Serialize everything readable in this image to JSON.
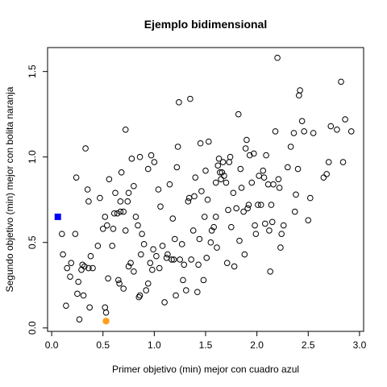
{
  "chart_data": {
    "type": "scatter",
    "title": "Ejemplo bidimensional",
    "xlabel": "Primer objetivo (min) mejor con cuadro azul",
    "ylabel": "Segundo objetivo (min) mejor con bolita naranja",
    "xlim": [
      -0.04,
      3.04
    ],
    "ylim": [
      -0.02,
      1.64
    ],
    "xticks": [
      0.0,
      0.5,
      1.0,
      1.5,
      2.0,
      2.5,
      3.0
    ],
    "xtick_labels": [
      "0.0",
      "0.5",
      "1.0",
      "1.5",
      "2.0",
      "2.5",
      "3.0"
    ],
    "yticks": [
      0.0,
      0.5,
      1.0,
      1.5
    ],
    "ytick_labels": [
      "0.0",
      "0.5",
      "1.0",
      "1.5"
    ],
    "grid": false,
    "highlight_square": {
      "x": 0.06,
      "y": 0.65,
      "color": "#0000ff"
    },
    "highlight_circle": {
      "x": 0.53,
      "y": 0.04,
      "color": "#ff9f1c"
    },
    "series": [
      {
        "marker": "open-circle",
        "color": "#000000",
        "points": [
          [
            0.1,
            0.55
          ],
          [
            0.11,
            0.43
          ],
          [
            0.15,
            0.35
          ],
          [
            0.14,
            0.13
          ],
          [
            0.18,
            0.3
          ],
          [
            0.19,
            0.38
          ],
          [
            0.23,
            0.55
          ],
          [
            0.24,
            0.88
          ],
          [
            0.26,
            0.27
          ],
          [
            0.25,
            0.2
          ],
          [
            0.27,
            0.05
          ],
          [
            0.29,
            0.34
          ],
          [
            0.3,
            0.37
          ],
          [
            0.32,
            0.36
          ],
          [
            0.31,
            0.19
          ],
          [
            0.33,
            1.05
          ],
          [
            0.35,
            0.81
          ],
          [
            0.36,
            0.74
          ],
          [
            0.36,
            0.35
          ],
          [
            0.37,
            0.12
          ],
          [
            0.38,
            0.42
          ],
          [
            0.4,
            0.35
          ],
          [
            0.45,
            0.48
          ],
          [
            0.47,
            0.76
          ],
          [
            0.5,
            0.58
          ],
          [
            0.52,
            0.65
          ],
          [
            0.52,
            0.12
          ],
          [
            0.53,
            0.09
          ],
          [
            0.54,
            0.6
          ],
          [
            0.56,
            0.87
          ],
          [
            0.55,
            0.29
          ],
          [
            0.59,
            0.48
          ],
          [
            0.6,
            0.58
          ],
          [
            0.61,
            0.67
          ],
          [
            0.62,
            0.79
          ],
          [
            0.64,
            0.67
          ],
          [
            0.65,
            0.28
          ],
          [
            0.66,
            0.26
          ],
          [
            0.67,
            0.68
          ],
          [
            0.67,
            0.74
          ],
          [
            0.68,
            0.91
          ],
          [
            0.7,
            0.68
          ],
          [
            0.7,
            0.23
          ],
          [
            0.72,
            0.57
          ],
          [
            0.72,
            1.16
          ],
          [
            0.74,
            0.74
          ],
          [
            0.75,
            0.79
          ],
          [
            0.75,
            0.36
          ],
          [
            0.77,
            0.38
          ],
          [
            0.78,
            0.99
          ],
          [
            0.8,
            0.33
          ],
          [
            0.8,
            0.83
          ],
          [
            0.82,
            0.65
          ],
          [
            0.84,
            0.6
          ],
          [
            0.85,
            0.18
          ],
          [
            0.86,
            0.19
          ],
          [
            0.87,
            0.43
          ],
          [
            0.88,
            0.55
          ],
          [
            0.86,
            1.0
          ],
          [
            0.9,
            0.49
          ],
          [
            0.92,
            0.22
          ],
          [
            0.94,
            0.26
          ],
          [
            0.94,
            0.93
          ],
          [
            0.96,
            0.38
          ],
          [
            0.97,
            1.01
          ],
          [
            0.98,
            0.34
          ],
          [
            0.99,
            0.46
          ],
          [
            1.0,
            0.97
          ],
          [
            1.02,
            0.42
          ],
          [
            1.04,
            0.81
          ],
          [
            1.05,
            0.35
          ],
          [
            1.06,
            0.71
          ],
          [
            1.08,
            0.48
          ],
          [
            1.1,
            0.15
          ],
          [
            1.12,
            0.41
          ],
          [
            1.13,
            0.43
          ],
          [
            1.15,
            0.84
          ],
          [
            1.17,
            0.4
          ],
          [
            1.18,
            0.64
          ],
          [
            1.19,
            0.4
          ],
          [
            1.2,
            0.52
          ],
          [
            1.21,
            0.19
          ],
          [
            1.22,
            0.94
          ],
          [
            1.23,
            1.06
          ],
          [
            1.24,
            1.32
          ],
          [
            1.25,
            0.4
          ],
          [
            1.27,
            0.49
          ],
          [
            1.28,
            0.28
          ],
          [
            1.29,
            0.37
          ],
          [
            1.31,
            0.22
          ],
          [
            1.33,
            0.74
          ],
          [
            1.34,
            0.76
          ],
          [
            1.35,
            1.34
          ],
          [
            1.36,
            0.4
          ],
          [
            1.38,
            0.57
          ],
          [
            1.39,
            0.77
          ],
          [
            1.4,
            0.88
          ],
          [
            1.42,
            0.21
          ],
          [
            1.43,
            0.37
          ],
          [
            1.44,
            0.52
          ],
          [
            1.45,
            1.08
          ],
          [
            1.46,
            0.8
          ],
          [
            1.48,
            0.28
          ],
          [
            1.49,
            0.65
          ],
          [
            1.5,
            0.92
          ],
          [
            1.51,
            0.41
          ],
          [
            1.52,
            0.75
          ],
          [
            1.53,
            1.09
          ],
          [
            1.55,
            0.5
          ],
          [
            1.56,
            0.57
          ],
          [
            1.58,
            0.59
          ],
          [
            1.6,
            0.85
          ],
          [
            1.6,
            0.65
          ],
          [
            1.61,
            0.47
          ],
          [
            1.62,
            0.95
          ],
          [
            1.63,
            0.99
          ],
          [
            1.64,
            0.91
          ],
          [
            1.65,
            0.87
          ],
          [
            1.66,
            0.91
          ],
          [
            1.67,
            0.97
          ],
          [
            1.68,
            0.89
          ],
          [
            1.7,
            0.85
          ],
          [
            1.71,
            0.38
          ],
          [
            1.72,
            0.69
          ],
          [
            1.73,
            0.97
          ],
          [
            1.74,
            1.0
          ],
          [
            1.75,
            0.59
          ],
          [
            1.77,
            0.79
          ],
          [
            1.78,
            0.36
          ],
          [
            1.8,
            0.7
          ],
          [
            1.82,
            1.25
          ],
          [
            1.83,
            0.51
          ],
          [
            1.84,
            0.93
          ],
          [
            1.85,
            0.82
          ],
          [
            1.87,
            0.68
          ],
          [
            1.88,
            0.43
          ],
          [
            1.89,
            1.05
          ],
          [
            1.9,
            1.1
          ],
          [
            1.91,
            0.7
          ],
          [
            1.92,
            0.72
          ],
          [
            1.93,
            1.01
          ],
          [
            1.95,
            0.85
          ],
          [
            1.97,
            1.02
          ],
          [
            1.98,
            0.6
          ],
          [
            1.99,
            0.55
          ],
          [
            2.01,
            0.72
          ],
          [
            2.02,
            0.89
          ],
          [
            2.04,
            0.72
          ],
          [
            2.06,
            0.92
          ],
          [
            2.07,
            0.88
          ],
          [
            2.08,
            0.61
          ],
          [
            2.09,
            1.01
          ],
          [
            2.11,
            0.84
          ],
          [
            2.12,
            0.57
          ],
          [
            2.13,
            0.33
          ],
          [
            2.14,
            0.72
          ],
          [
            2.15,
            0.62
          ],
          [
            2.16,
            0.84
          ],
          [
            2.18,
            1.15
          ],
          [
            2.2,
            1.58
          ],
          [
            2.21,
            0.87
          ],
          [
            2.22,
            0.82
          ],
          [
            2.23,
            0.47
          ],
          [
            2.24,
            0.55
          ],
          [
            2.26,
            0.6
          ],
          [
            2.3,
            0.94
          ],
          [
            2.33,
            1.06
          ],
          [
            2.36,
            1.14
          ],
          [
            2.37,
            0.68
          ],
          [
            2.38,
            0.78
          ],
          [
            2.4,
            0.93
          ],
          [
            2.41,
            1.36
          ],
          [
            2.42,
            1.39
          ],
          [
            2.44,
            1.21
          ],
          [
            2.46,
            1.15
          ],
          [
            2.5,
            0.63
          ],
          [
            2.52,
            0.76
          ],
          [
            2.55,
            1.14
          ],
          [
            2.65,
            0.88
          ],
          [
            2.68,
            0.9
          ],
          [
            2.7,
            0.97
          ],
          [
            2.72,
            1.18
          ],
          [
            2.78,
            1.16
          ],
          [
            2.82,
            1.44
          ],
          [
            2.84,
            0.97
          ],
          [
            2.86,
            1.22
          ],
          [
            2.92,
            1.15
          ]
        ]
      }
    ]
  }
}
